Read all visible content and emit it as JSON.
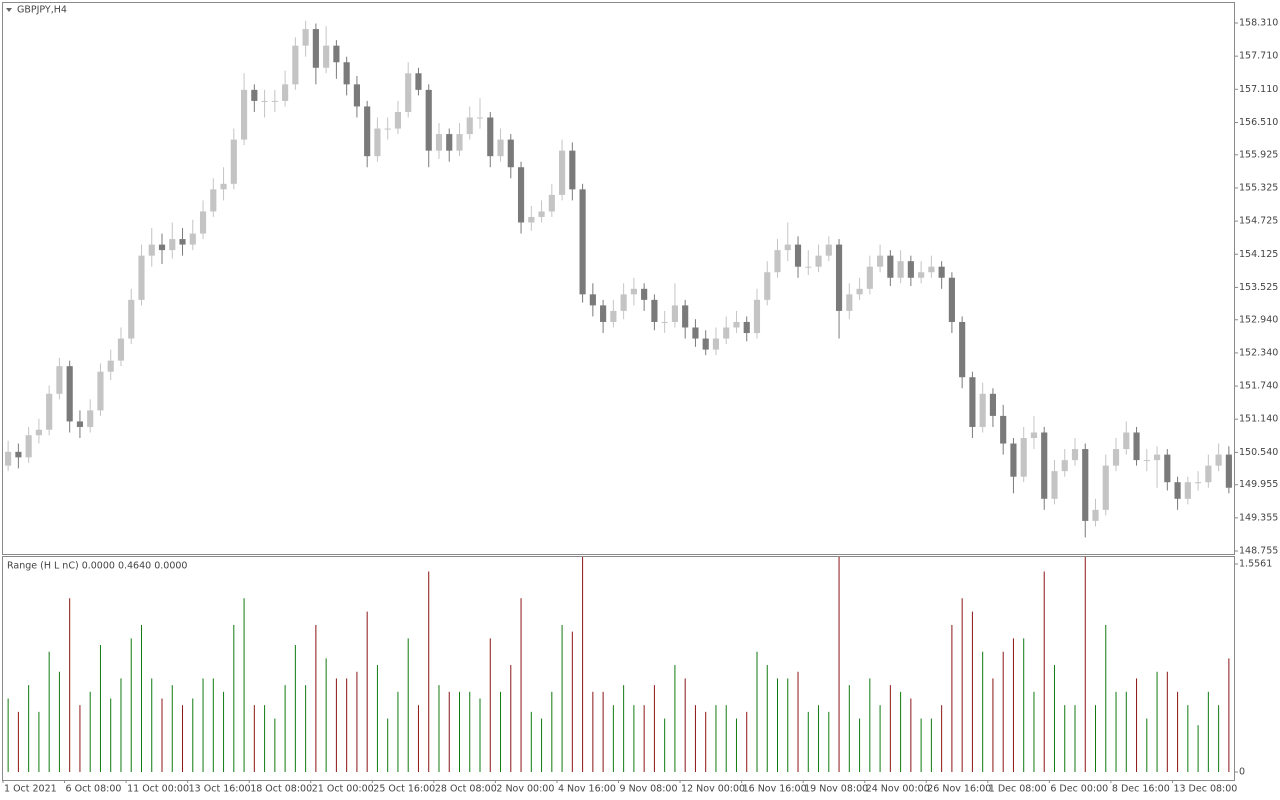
{
  "chart_data": {
    "type": "candlestick",
    "title": "GBPJPY,H4",
    "up_color": "#c4c4c4",
    "down_color": "#7a7a7a",
    "ylim": [
      148.701,
      158.672
    ],
    "yticks": [
      {
        "value": 158.31,
        "label": "158.310"
      },
      {
        "value": 157.71,
        "label": "157.710"
      },
      {
        "value": 157.11,
        "label": "157.110"
      },
      {
        "value": 156.51,
        "label": "156.510"
      },
      {
        "value": 155.925,
        "label": "155.925"
      },
      {
        "value": 155.325,
        "label": "155.325"
      },
      {
        "value": 154.725,
        "label": "154.725"
      },
      {
        "value": 154.125,
        "label": "154.125"
      },
      {
        "value": 153.525,
        "label": "153.525"
      },
      {
        "value": 152.94,
        "label": "152.940"
      },
      {
        "value": 152.34,
        "label": "152.340"
      },
      {
        "value": 151.74,
        "label": "151.740"
      },
      {
        "value": 151.14,
        "label": "151.140"
      },
      {
        "value": 150.54,
        "label": "150.540"
      },
      {
        "value": 149.955,
        "label": "149.955"
      },
      {
        "value": 149.355,
        "label": "149.355"
      },
      {
        "value": 148.755,
        "label": "148.755"
      }
    ],
    "xlabels": [
      "1 Oct 2021",
      "6 Oct 08:00",
      "11 Oct 00:00",
      "13 Oct 16:00",
      "18 Oct 08:00",
      "21 Oct 00:00",
      "25 Oct 16:00",
      "28 Oct 08:00",
      "2 Nov 00:00",
      "4 Nov 16:00",
      "9 Nov 08:00",
      "12 Nov 00:00",
      "16 Nov 16:00",
      "19 Nov 08:00",
      "24 Nov 00:00",
      "26 Nov 16:00",
      "1 Dec 08:00",
      "6 Dec 00:00",
      "8 Dec 16:00",
      "13 Dec 08:00"
    ],
    "ohlc": [
      [
        150.3,
        150.75,
        150.2,
        150.55
      ],
      [
        150.55,
        150.7,
        150.25,
        150.45
      ],
      [
        150.45,
        151.0,
        150.35,
        150.85
      ],
      [
        150.85,
        151.15,
        150.7,
        150.95
      ],
      [
        150.95,
        151.75,
        150.85,
        151.6
      ],
      [
        151.6,
        152.25,
        151.5,
        152.1
      ],
      [
        152.1,
        152.2,
        150.9,
        151.1
      ],
      [
        151.1,
        151.3,
        150.8,
        151.0
      ],
      [
        151.0,
        151.5,
        150.9,
        151.3
      ],
      [
        151.3,
        152.15,
        151.2,
        152.0
      ],
      [
        152.0,
        152.4,
        151.85,
        152.2
      ],
      [
        152.2,
        152.8,
        152.1,
        152.6
      ],
      [
        152.6,
        153.5,
        152.5,
        153.3
      ],
      [
        153.3,
        154.3,
        153.2,
        154.1
      ],
      [
        154.1,
        154.6,
        153.9,
        154.3
      ],
      [
        154.3,
        154.5,
        153.95,
        154.2
      ],
      [
        154.2,
        154.7,
        154.05,
        154.4
      ],
      [
        154.4,
        154.6,
        154.1,
        154.3
      ],
      [
        154.3,
        154.75,
        154.2,
        154.5
      ],
      [
        154.5,
        155.1,
        154.4,
        154.9
      ],
      [
        154.9,
        155.5,
        154.8,
        155.3
      ],
      [
        155.3,
        155.7,
        155.1,
        155.4
      ],
      [
        155.4,
        156.4,
        155.3,
        156.2
      ],
      [
        156.2,
        157.4,
        156.1,
        157.1
      ],
      [
        157.1,
        157.2,
        156.7,
        156.9
      ],
      [
        156.9,
        157.1,
        156.6,
        156.9
      ],
      [
        156.9,
        157.1,
        156.7,
        156.9
      ],
      [
        156.9,
        157.45,
        156.8,
        157.2
      ],
      [
        157.2,
        158.05,
        157.1,
        157.9
      ],
      [
        157.9,
        158.35,
        157.7,
        158.2
      ],
      [
        158.2,
        158.3,
        157.2,
        157.5
      ],
      [
        157.5,
        158.25,
        157.4,
        157.9
      ],
      [
        157.9,
        158.0,
        157.3,
        157.6
      ],
      [
        157.6,
        157.7,
        157.0,
        157.2
      ],
      [
        157.2,
        157.35,
        156.6,
        156.8
      ],
      [
        156.8,
        156.9,
        155.7,
        155.9
      ],
      [
        155.9,
        156.6,
        155.8,
        156.4
      ],
      [
        156.4,
        156.6,
        156.2,
        156.4
      ],
      [
        156.4,
        156.9,
        156.3,
        156.7
      ],
      [
        156.7,
        157.6,
        156.6,
        157.4
      ],
      [
        157.4,
        157.5,
        157.0,
        157.1
      ],
      [
        157.1,
        157.2,
        155.7,
        156.0
      ],
      [
        156.0,
        156.5,
        155.85,
        156.3
      ],
      [
        156.3,
        156.4,
        155.8,
        156.0
      ],
      [
        156.0,
        156.5,
        155.9,
        156.3
      ],
      [
        156.3,
        156.8,
        156.2,
        156.6
      ],
      [
        156.6,
        156.95,
        156.4,
        156.6
      ],
      [
        156.6,
        156.7,
        155.7,
        155.9
      ],
      [
        155.9,
        156.4,
        155.8,
        156.2
      ],
      [
        156.2,
        156.3,
        155.5,
        155.7
      ],
      [
        155.7,
        155.8,
        154.5,
        154.7
      ],
      [
        154.7,
        155.0,
        154.55,
        154.8
      ],
      [
        154.8,
        155.1,
        154.7,
        154.9
      ],
      [
        154.9,
        155.4,
        154.8,
        155.2
      ],
      [
        155.2,
        156.2,
        155.1,
        156.0
      ],
      [
        156.0,
        156.15,
        155.1,
        155.3
      ],
      [
        155.3,
        155.4,
        153.25,
        153.4
      ],
      [
        153.4,
        153.6,
        153.0,
        153.2
      ],
      [
        153.2,
        153.3,
        152.7,
        152.9
      ],
      [
        152.9,
        153.3,
        152.8,
        153.1
      ],
      [
        153.1,
        153.6,
        152.95,
        153.4
      ],
      [
        153.4,
        153.7,
        153.2,
        153.5
      ],
      [
        153.5,
        153.6,
        153.1,
        153.3
      ],
      [
        153.3,
        153.4,
        152.75,
        152.9
      ],
      [
        152.9,
        153.1,
        152.7,
        152.9
      ],
      [
        152.9,
        153.6,
        152.8,
        153.2
      ],
      [
        153.2,
        153.3,
        152.6,
        152.8
      ],
      [
        152.8,
        152.95,
        152.45,
        152.6
      ],
      [
        152.6,
        152.75,
        152.3,
        152.4
      ],
      [
        152.4,
        152.8,
        152.3,
        152.6
      ],
      [
        152.6,
        153.0,
        152.5,
        152.8
      ],
      [
        152.8,
        153.1,
        152.7,
        152.9
      ],
      [
        152.9,
        153.0,
        152.55,
        152.7
      ],
      [
        152.7,
        153.5,
        152.6,
        153.3
      ],
      [
        153.3,
        154.0,
        153.2,
        153.8
      ],
      [
        153.8,
        154.4,
        153.7,
        154.2
      ],
      [
        154.2,
        154.7,
        154.0,
        154.3
      ],
      [
        154.3,
        154.45,
        153.7,
        153.9
      ],
      [
        153.9,
        154.2,
        153.75,
        153.9
      ],
      [
        153.9,
        154.3,
        153.8,
        154.1
      ],
      [
        154.1,
        154.45,
        154.0,
        154.3
      ],
      [
        154.3,
        154.4,
        152.6,
        153.1
      ],
      [
        153.1,
        153.6,
        152.95,
        153.4
      ],
      [
        153.4,
        153.7,
        153.3,
        153.5
      ],
      [
        153.5,
        154.1,
        153.4,
        153.9
      ],
      [
        153.9,
        154.3,
        153.8,
        154.1
      ],
      [
        154.1,
        154.2,
        153.55,
        153.7
      ],
      [
        153.7,
        154.2,
        153.6,
        154.0
      ],
      [
        154.0,
        154.1,
        153.55,
        153.7
      ],
      [
        153.7,
        154.0,
        153.6,
        153.8
      ],
      [
        153.8,
        154.1,
        153.7,
        153.9
      ],
      [
        153.9,
        154.0,
        153.5,
        153.7
      ],
      [
        153.7,
        153.8,
        152.7,
        152.9
      ],
      [
        152.9,
        153.0,
        151.7,
        151.9
      ],
      [
        151.9,
        152.0,
        150.8,
        151.0
      ],
      [
        151.0,
        151.8,
        150.9,
        151.6
      ],
      [
        151.6,
        151.7,
        151.0,
        151.2
      ],
      [
        151.2,
        151.4,
        150.5,
        150.7
      ],
      [
        150.7,
        150.8,
        149.8,
        150.1
      ],
      [
        150.1,
        151.0,
        150.0,
        150.8
      ],
      [
        150.8,
        151.2,
        150.6,
        150.9
      ],
      [
        150.9,
        151.0,
        149.5,
        149.7
      ],
      [
        149.7,
        150.4,
        149.6,
        150.2
      ],
      [
        150.2,
        150.6,
        150.1,
        150.4
      ],
      [
        150.4,
        150.8,
        150.3,
        150.6
      ],
      [
        150.6,
        150.7,
        149.0,
        149.3
      ],
      [
        149.3,
        149.7,
        149.2,
        149.5
      ],
      [
        149.5,
        150.5,
        149.4,
        150.3
      ],
      [
        150.3,
        150.8,
        150.2,
        150.6
      ],
      [
        150.6,
        151.1,
        150.5,
        150.9
      ],
      [
        150.9,
        151.0,
        150.3,
        150.4
      ],
      [
        150.4,
        150.6,
        150.2,
        150.4
      ],
      [
        150.4,
        150.65,
        149.9,
        150.5
      ],
      [
        150.5,
        150.6,
        149.85,
        150.0
      ],
      [
        150.0,
        150.1,
        149.5,
        149.7
      ],
      [
        149.7,
        150.1,
        149.6,
        150.0
      ],
      [
        150.0,
        150.2,
        149.85,
        150.0
      ],
      [
        150.0,
        150.5,
        149.9,
        150.3
      ],
      [
        150.3,
        150.7,
        150.2,
        150.5
      ],
      [
        150.5,
        150.65,
        149.8,
        149.9
      ]
    ],
    "indicator": {
      "title": "Range (H L nC) 0.0000 0.4640 0.0000",
      "up_color": "#0f7a0f",
      "down_color": "#8b1414",
      "ylim": [
        -0.0598,
        1.6085
      ],
      "yticks": [
        1.5561,
        0
      ]
    }
  }
}
